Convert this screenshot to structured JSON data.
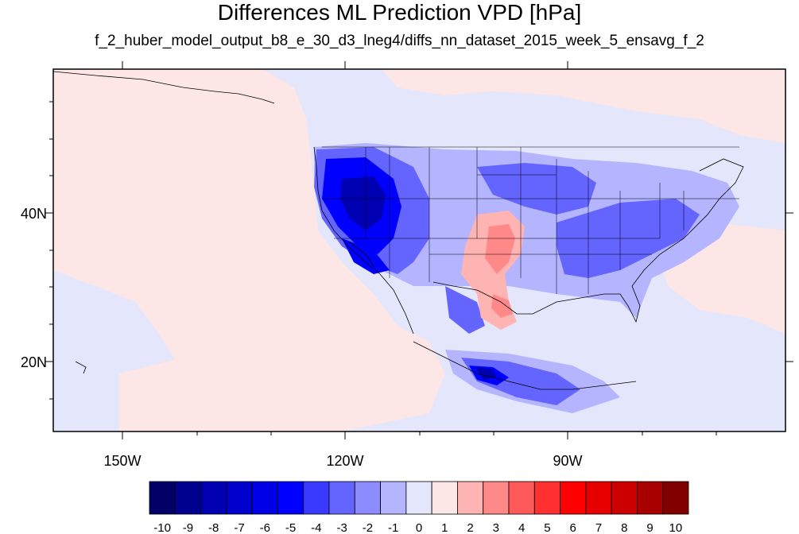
{
  "title": "Differences ML Prediction VPD [hPa]",
  "subtitle": "f_2_huber_model_output_b8_e_30_d3_lneg4/diffs_nn_dataset_2015_week_5_ensavg_f_2",
  "map": {
    "lat_labels": [
      "40N",
      "20N"
    ],
    "lon_labels": [
      "150W",
      "120W",
      "90W"
    ],
    "background_positive_color": "#fde6e6",
    "background_negative_color": "#e4e6fb"
  },
  "colorbar": {
    "labels": [
      "-10",
      "-9",
      "-8",
      "-7",
      "-6",
      "-5",
      "-4",
      "-3",
      "-2",
      "-1",
      "0",
      "1",
      "2",
      "3",
      "4",
      "5",
      "6",
      "7",
      "8",
      "9",
      "10"
    ],
    "colors": [
      "#000066",
      "#00008f",
      "#0000b3",
      "#0000cc",
      "#0000e6",
      "#0000ff",
      "#3a3aff",
      "#6464ff",
      "#8c8cff",
      "#b4b4ff",
      "#e4e6fb",
      "#fde6e6",
      "#ffb4b4",
      "#ff8888",
      "#ff5a5a",
      "#ff3030",
      "#ff0000",
      "#e60000",
      "#cc0000",
      "#a80000",
      "#800000"
    ]
  }
}
